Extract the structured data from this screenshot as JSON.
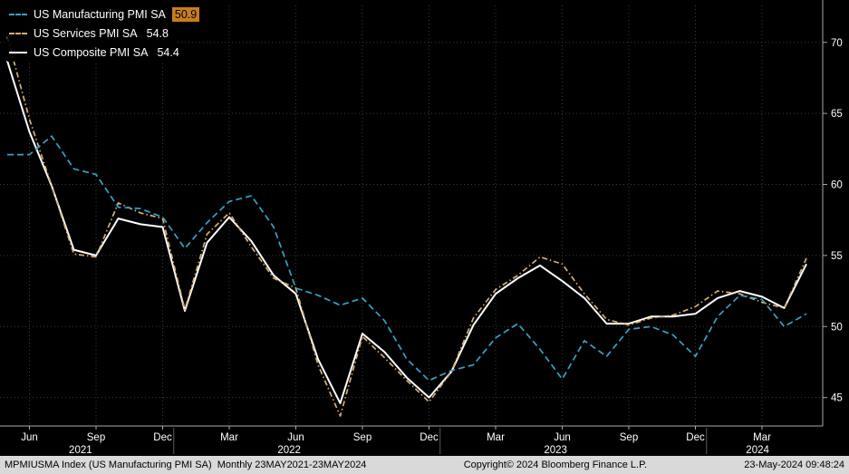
{
  "colors": {
    "background": "#000000",
    "grid": "#3d3d3d",
    "axis": "#a8a8a8",
    "text": "#ffffff",
    "footer_bg": "#d9d9d9",
    "footer_text": "#000000",
    "value_highlight_bg": "#c87d1e",
    "manufacturing": "#37a2c8",
    "services": "#d9ad74",
    "composite": "#ffffff"
  },
  "legend": {
    "items": [
      {
        "label": "US Manufacturing PMI SA",
        "value": "50.9",
        "highlighted": true
      },
      {
        "label": "US Services PMI SA",
        "value": "54.8",
        "highlighted": false
      },
      {
        "label": "US Composite PMI SA",
        "value": "54.4",
        "highlighted": false
      }
    ]
  },
  "footer": {
    "left": "MPMIUSMA Index (US Manufacturing PMI SA)  Monthly 23MAY2021-23MAY2024",
    "copyright": "Copyright© 2024 Bloomberg Finance L.P.",
    "timestamp": "23-May-2024 09:48:24"
  },
  "chart_data": {
    "type": "line",
    "title": "",
    "xlabel": "",
    "ylabel": "",
    "grid": "dotted",
    "legend_position": "top-left",
    "ylim": [
      43,
      72.6
    ],
    "y_ticks": [
      45,
      50,
      55,
      60,
      65,
      70
    ],
    "x": [
      "2021-05",
      "2021-06",
      "2021-07",
      "2021-08",
      "2021-09",
      "2021-10",
      "2021-11",
      "2021-12",
      "2022-01",
      "2022-02",
      "2022-03",
      "2022-04",
      "2022-05",
      "2022-06",
      "2022-07",
      "2022-08",
      "2022-09",
      "2022-10",
      "2022-11",
      "2022-12",
      "2023-01",
      "2023-02",
      "2023-03",
      "2023-04",
      "2023-05",
      "2023-06",
      "2023-07",
      "2023-08",
      "2023-09",
      "2023-10",
      "2023-11",
      "2023-12",
      "2024-01",
      "2024-02",
      "2024-03",
      "2024-04",
      "2024-05"
    ],
    "x_ticks": [
      {
        "label": "Jun",
        "m": 1
      },
      {
        "label": "Sep",
        "m": 4
      },
      {
        "label": "Dec",
        "m": 7
      },
      {
        "label": "Mar",
        "m": 10
      },
      {
        "label": "Jun",
        "m": 13
      },
      {
        "label": "Sep",
        "m": 16
      },
      {
        "label": "Dec",
        "m": 19
      },
      {
        "label": "Mar",
        "m": 22
      },
      {
        "label": "Jun",
        "m": 25
      },
      {
        "label": "Sep",
        "m": 28
      },
      {
        "label": "Dec",
        "m": 31
      },
      {
        "label": "Mar",
        "m": 34
      }
    ],
    "year_labels": [
      {
        "label": "2021",
        "m": 3.3
      },
      {
        "label": "2022",
        "m": 12.7
      },
      {
        "label": "2023",
        "m": 24.7
      },
      {
        "label": "2024",
        "m": 33.8
      }
    ],
    "year_separators": [
      7.5,
      19.5,
      31.5
    ],
    "series": [
      {
        "id": "manufacturing",
        "name": "US Manufacturing PMI SA",
        "last": 50.9,
        "color": "#37a2c8",
        "dash": "dashed",
        "values": [
          62.1,
          62.1,
          63.4,
          61.1,
          60.7,
          58.4,
          58.3,
          57.7,
          55.5,
          57.3,
          58.8,
          59.2,
          57.0,
          52.7,
          52.2,
          51.5,
          52.0,
          50.4,
          47.7,
          46.2,
          46.9,
          47.3,
          49.2,
          50.2,
          48.4,
          46.3,
          49.0,
          47.9,
          49.8,
          50.0,
          49.4,
          47.9,
          50.7,
          52.2,
          51.9,
          50.0,
          50.9
        ]
      },
      {
        "id": "services",
        "name": "US Services PMI SA",
        "last": 54.8,
        "color": "#d9ad74",
        "dash": "dash-dot",
        "values": [
          70.4,
          64.6,
          59.9,
          55.1,
          54.9,
          58.7,
          58.0,
          57.6,
          51.2,
          56.5,
          58.0,
          55.6,
          53.4,
          52.7,
          47.3,
          43.7,
          49.3,
          47.8,
          46.2,
          44.7,
          46.8,
          50.6,
          52.6,
          53.6,
          54.9,
          54.4,
          52.3,
          50.5,
          50.1,
          50.6,
          50.8,
          51.4,
          52.5,
          52.3,
          51.7,
          51.3,
          54.8
        ]
      },
      {
        "id": "composite",
        "name": "US Composite PMI SA",
        "last": 54.4,
        "color": "#ffffff",
        "dash": "solid",
        "values": [
          68.7,
          63.7,
          59.9,
          55.4,
          55.0,
          57.6,
          57.2,
          57.0,
          51.1,
          55.9,
          57.7,
          56.0,
          53.6,
          52.3,
          47.7,
          44.6,
          49.5,
          48.2,
          46.4,
          45.0,
          46.8,
          50.1,
          52.3,
          53.4,
          54.3,
          53.2,
          52.0,
          50.2,
          50.2,
          50.7,
          50.7,
          50.9,
          52.0,
          52.5,
          52.1,
          51.3,
          54.4
        ]
      }
    ]
  }
}
